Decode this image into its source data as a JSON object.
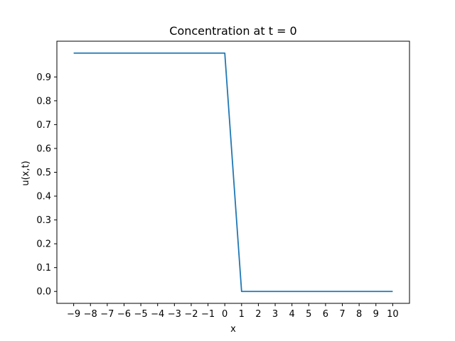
{
  "chart_data": {
    "type": "line",
    "title": "Concentration at t = 0",
    "xlabel": "x",
    "ylabel": "u(x,t)",
    "xlim": [
      -10.0,
      11.0
    ],
    "ylim": [
      -0.05,
      1.05
    ],
    "x_ticks": [
      -9,
      -8,
      -7,
      -6,
      -5,
      -4,
      -3,
      -2,
      -1,
      0,
      1,
      2,
      3,
      4,
      5,
      6,
      7,
      8,
      9,
      10
    ],
    "x_tick_labels": [
      "−9",
      "−8",
      "−7",
      "−6",
      "−5",
      "−4",
      "−3",
      "−2",
      "−1",
      "0",
      "1",
      "2",
      "3",
      "4",
      "5",
      "6",
      "7",
      "8",
      "9",
      "10"
    ],
    "y_ticks": [
      0.0,
      0.1,
      0.2,
      0.3,
      0.4,
      0.5,
      0.6,
      0.7,
      0.8,
      0.9
    ],
    "y_tick_labels": [
      "0.0",
      "0.1",
      "0.2",
      "0.3",
      "0.4",
      "0.5",
      "0.6",
      "0.7",
      "0.8",
      "0.9"
    ],
    "grid": false,
    "series": [
      {
        "color": "#1f77b4",
        "x": [
          -9,
          -8,
          -7,
          -6,
          -5,
          -4,
          -3,
          -2,
          -1,
          0,
          1,
          2,
          3,
          4,
          5,
          6,
          7,
          8,
          9,
          10
        ],
        "y": [
          1,
          1,
          1,
          1,
          1,
          1,
          1,
          1,
          1,
          1,
          0,
          0,
          0,
          0,
          0,
          0,
          0,
          0,
          0,
          0
        ]
      }
    ]
  }
}
